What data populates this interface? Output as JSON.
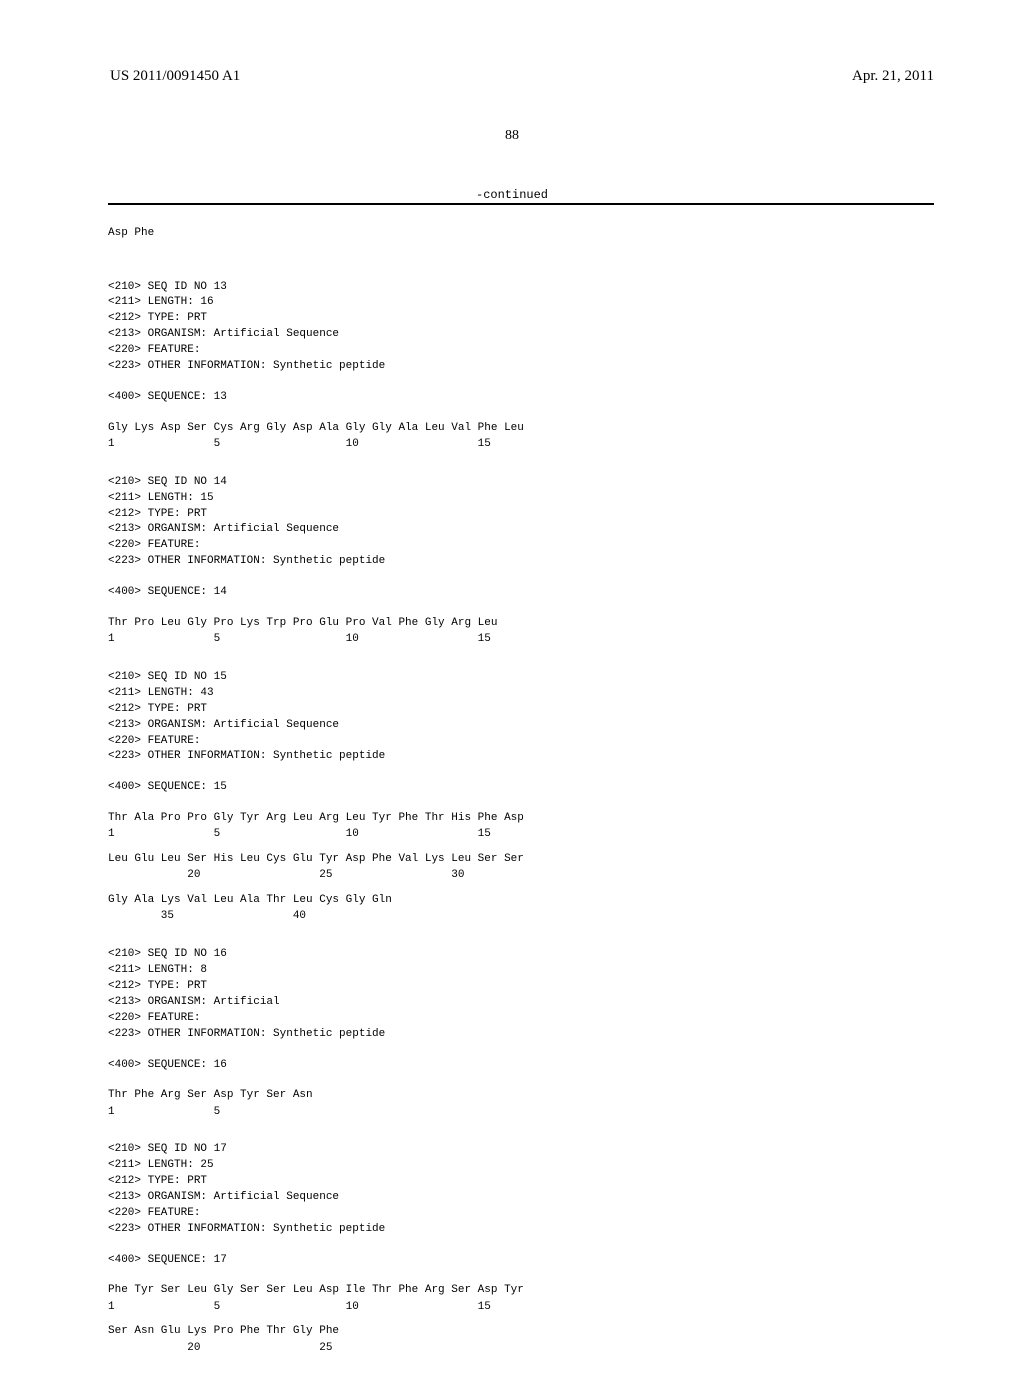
{
  "header": {
    "pub_number": "US 2011/0091450 A1",
    "pub_date": "Apr. 21, 2011"
  },
  "page_number": "88",
  "continued_label": "-continued",
  "initial_line": "Asp Phe",
  "sequences": [
    {
      "annotations": [
        "<210> SEQ ID NO 13",
        "<211> LENGTH: 16",
        "<212> TYPE: PRT",
        "<213> ORGANISM: Artificial Sequence",
        "<220> FEATURE:",
        "<223> OTHER INFORMATION: Synthetic peptide"
      ],
      "seq_header": "<400> SEQUENCE: 13",
      "lines": [
        "Gly Lys Asp Ser Cys Arg Gly Asp Ala Gly Gly Ala Leu Val Phe Leu",
        "1               5                   10                  15"
      ]
    },
    {
      "annotations": [
        "<210> SEQ ID NO 14",
        "<211> LENGTH: 15",
        "<212> TYPE: PRT",
        "<213> ORGANISM: Artificial Sequence",
        "<220> FEATURE:",
        "<223> OTHER INFORMATION: Synthetic peptide"
      ],
      "seq_header": "<400> SEQUENCE: 14",
      "lines": [
        "Thr Pro Leu Gly Pro Lys Trp Pro Glu Pro Val Phe Gly Arg Leu",
        "1               5                   10                  15"
      ]
    },
    {
      "annotations": [
        "<210> SEQ ID NO 15",
        "<211> LENGTH: 43",
        "<212> TYPE: PRT",
        "<213> ORGANISM: Artificial Sequence",
        "<220> FEATURE:",
        "<223> OTHER INFORMATION: Synthetic peptide"
      ],
      "seq_header": "<400> SEQUENCE: 15",
      "lines": [
        "Thr Ala Pro Pro Gly Tyr Arg Leu Arg Leu Tyr Phe Thr His Phe Asp",
        "1               5                   10                  15",
        "",
        "Leu Glu Leu Ser His Leu Cys Glu Tyr Asp Phe Val Lys Leu Ser Ser",
        "            20                  25                  30",
        "",
        "Gly Ala Lys Val Leu Ala Thr Leu Cys Gly Gln",
        "        35                  40"
      ]
    },
    {
      "annotations": [
        "<210> SEQ ID NO 16",
        "<211> LENGTH: 8",
        "<212> TYPE: PRT",
        "<213> ORGANISM: Artificial",
        "<220> FEATURE:",
        "<223> OTHER INFORMATION: Synthetic peptide"
      ],
      "seq_header": "<400> SEQUENCE: 16",
      "lines": [
        "Thr Phe Arg Ser Asp Tyr Ser Asn",
        "1               5"
      ]
    },
    {
      "annotations": [
        "<210> SEQ ID NO 17",
        "<211> LENGTH: 25",
        "<212> TYPE: PRT",
        "<213> ORGANISM: Artificial Sequence",
        "<220> FEATURE:",
        "<223> OTHER INFORMATION: Synthetic peptide"
      ],
      "seq_header": "<400> SEQUENCE: 17",
      "lines": [
        "Phe Tyr Ser Leu Gly Ser Ser Leu Asp Ile Thr Phe Arg Ser Asp Tyr",
        "1               5                   10                  15",
        "",
        "Ser Asn Glu Lys Pro Phe Thr Gly Phe",
        "            20                  25"
      ]
    }
  ]
}
